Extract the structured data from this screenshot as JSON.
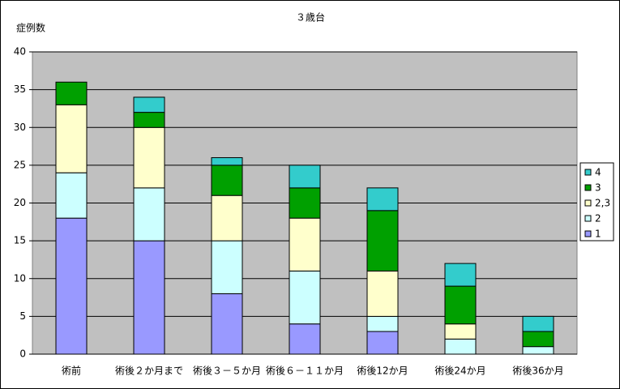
{
  "chart_data": {
    "type": "stacked-bar",
    "title": "３歳台",
    "y_label": "症例数",
    "categories": [
      "術前",
      "術後２か月まで",
      "術後３－５か月",
      "術後６－１１か月",
      "術後12か月",
      "術後24か月",
      "術後36か月"
    ],
    "series": [
      {
        "name": "1",
        "color": "#9999ff",
        "values": [
          18,
          15,
          8,
          4,
          3,
          0,
          0
        ]
      },
      {
        "name": "2",
        "color": "#ccffff",
        "values": [
          6,
          7,
          7,
          7,
          2,
          2,
          1
        ]
      },
      {
        "name": "2,3",
        "color": "#ffffcc",
        "values": [
          9,
          8,
          6,
          7,
          6,
          2,
          0
        ]
      },
      {
        "name": "3",
        "color": "#00a000",
        "values": [
          3,
          2,
          4,
          4,
          8,
          5,
          2
        ]
      },
      {
        "name": "4",
        "color": "#33cccc",
        "values": [
          0,
          2,
          1,
          3,
          3,
          3,
          2
        ]
      }
    ],
    "ylim": [
      0,
      40
    ],
    "yticks": [
      0,
      5,
      10,
      15,
      20,
      25,
      30,
      35,
      40
    ],
    "grid": true,
    "legend": "right"
  }
}
